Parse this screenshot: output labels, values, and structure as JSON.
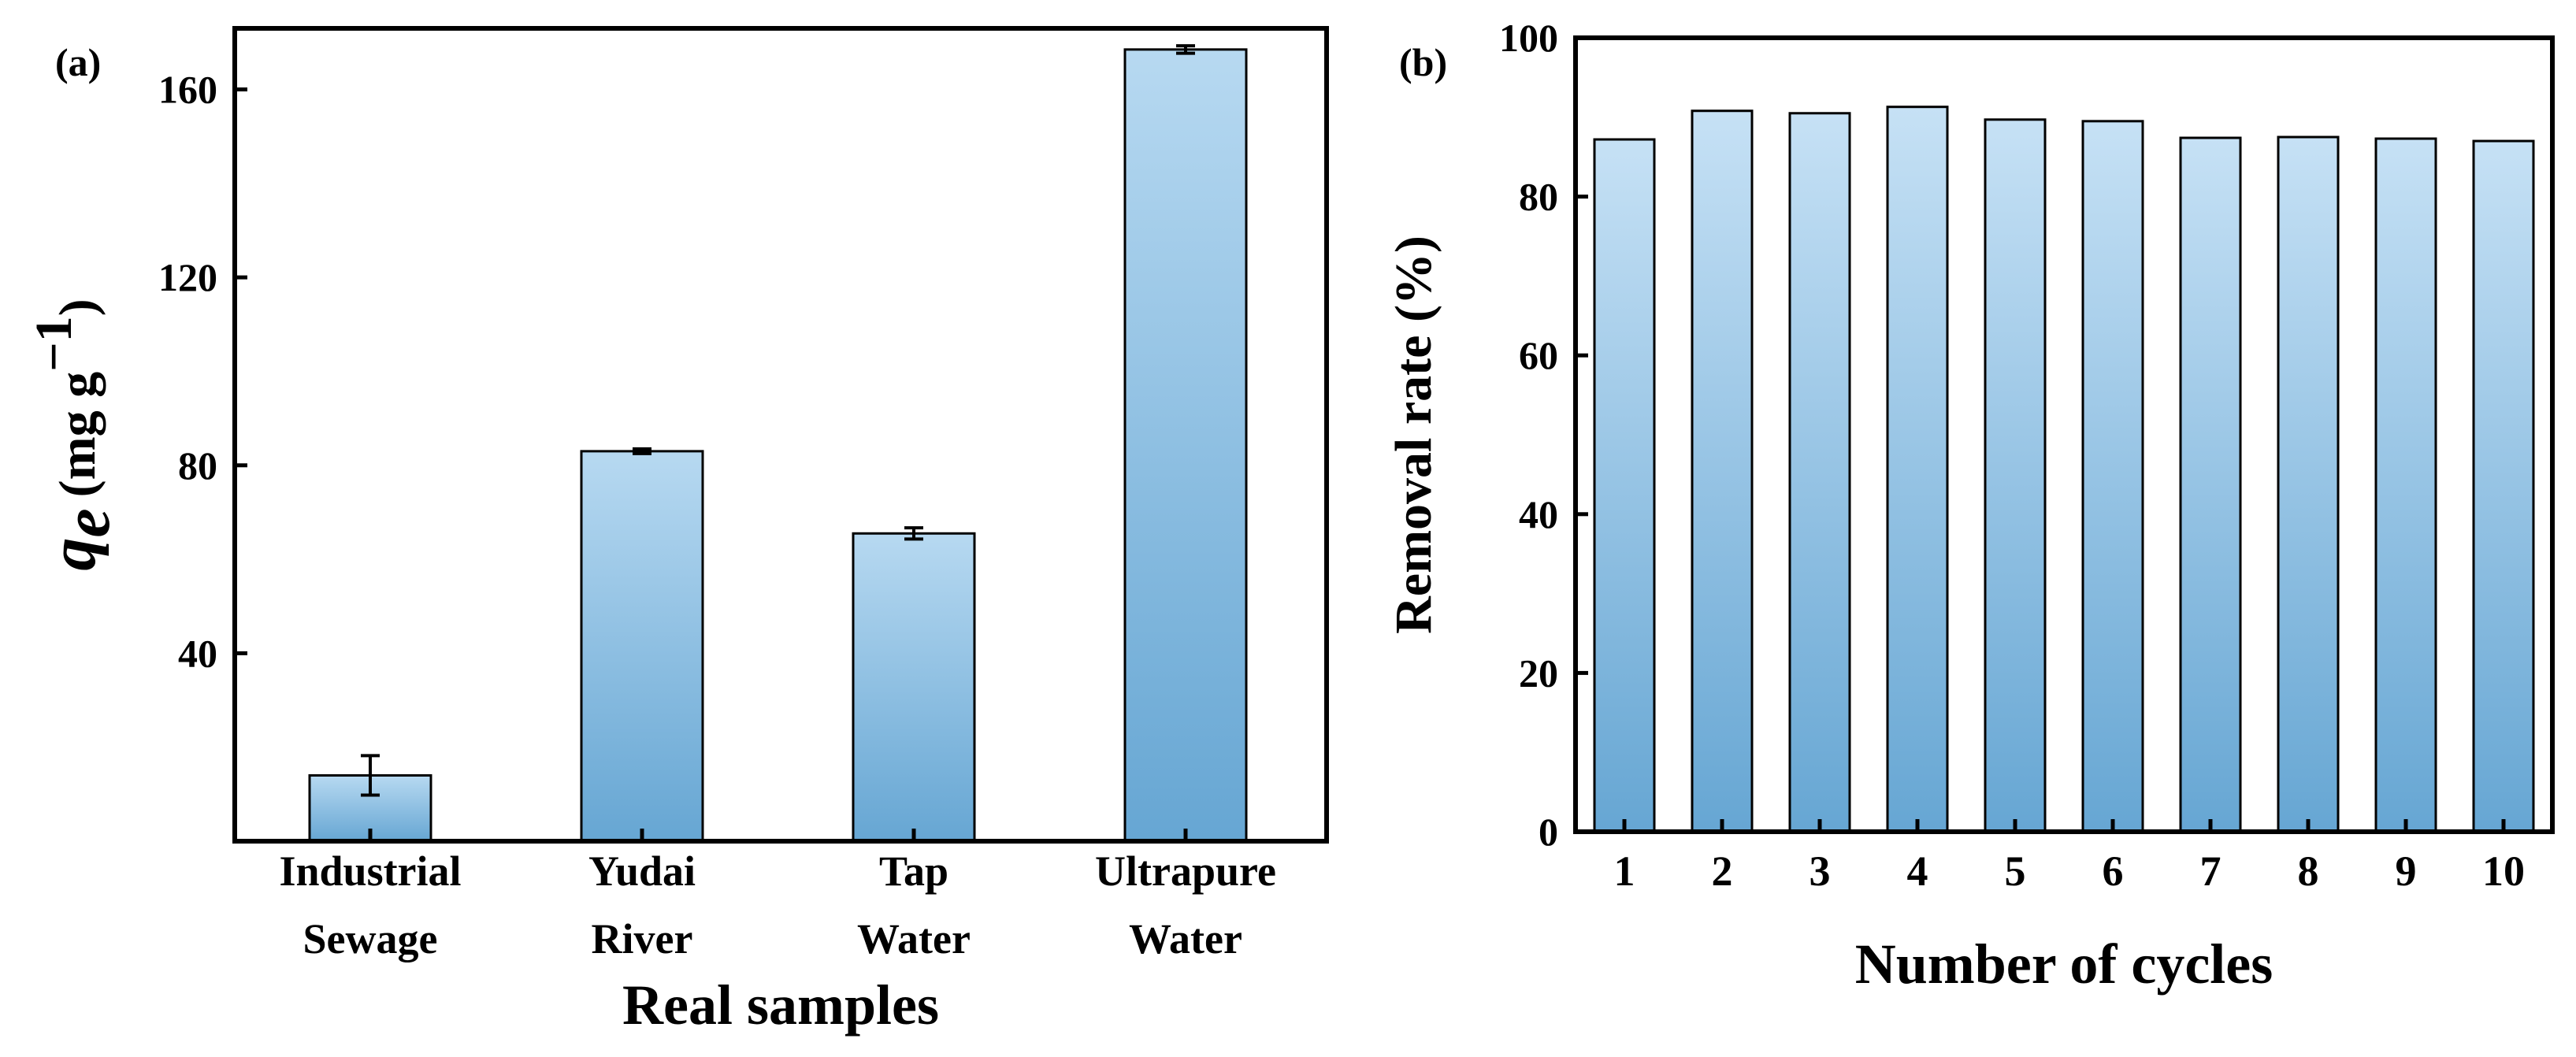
{
  "chart_data": [
    {
      "panel_label": "(a)",
      "type": "bar",
      "categories": [
        [
          "Industrial",
          "Sewage"
        ],
        [
          "Yudai",
          "River"
        ],
        [
          "Tap",
          "Water"
        ],
        [
          "Ultrapure",
          "Water"
        ]
      ],
      "values": [
        14,
        83,
        65.5,
        168.5
      ],
      "errors": [
        4.2,
        0.5,
        1.2,
        0.8
      ],
      "xlabel": "Real samples",
      "ylabel_symbol": "q",
      "ylabel_subscript": "e",
      "ylabel_unit_open": "(mg g",
      "ylabel_unit_exp": "−1",
      "ylabel_unit_close": ")",
      "ylim": [
        0,
        173
      ],
      "yticks": [
        40,
        80,
        120,
        160
      ],
      "grid": false,
      "gradient": [
        "#b7d9f1",
        "#66a6d3"
      ]
    },
    {
      "panel_label": "(b)",
      "type": "bar",
      "categories": [
        "1",
        "2",
        "3",
        "4",
        "5",
        "6",
        "7",
        "8",
        "9",
        "10"
      ],
      "values": [
        87.2,
        90.8,
        90.5,
        91.3,
        89.7,
        89.5,
        87.4,
        87.5,
        87.3,
        87.0
      ],
      "xlabel": "Number of cycles",
      "ylabel": "Removal rate (%)",
      "ylim": [
        0,
        100
      ],
      "yticks": [
        0,
        20,
        40,
        60,
        80,
        100
      ],
      "grid": false,
      "gradient": [
        "#c6e1f5",
        "#66a6d3"
      ]
    }
  ]
}
